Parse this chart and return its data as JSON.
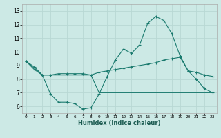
{
  "title": "",
  "xlabel": "Humidex (Indice chaleur)",
  "background_color": "#cce9e5",
  "grid_color": "#b8d8d4",
  "line_color": "#1a7a6e",
  "x_ticks": [
    0,
    1,
    2,
    3,
    4,
    5,
    6,
    7,
    8,
    9,
    10,
    11,
    12,
    13,
    14,
    15,
    16,
    17,
    18,
    19,
    20,
    21,
    22,
    23
  ],
  "y_ticks": [
    6,
    7,
    8,
    9,
    10,
    11,
    12,
    13
  ],
  "ylim": [
    5.5,
    13.5
  ],
  "xlim": [
    -0.5,
    23.5
  ],
  "series1_x": [
    0,
    1,
    2,
    3,
    4,
    5,
    6,
    7,
    8,
    9,
    10,
    11,
    12,
    13,
    14,
    15,
    16,
    17,
    18,
    19,
    20,
    21,
    22,
    23
  ],
  "series1_y": [
    9.3,
    8.9,
    8.3,
    6.9,
    6.3,
    6.3,
    6.2,
    5.8,
    5.9,
    6.9,
    8.2,
    9.4,
    10.2,
    9.9,
    10.5,
    12.1,
    12.6,
    12.3,
    11.3,
    9.7,
    8.6,
    8.0,
    7.3,
    7.0
  ],
  "series2_x": [
    0,
    1,
    2,
    3,
    4,
    5,
    6,
    7,
    8,
    9,
    10,
    11,
    12,
    13,
    14,
    15,
    16,
    17,
    18,
    19,
    20,
    21,
    22,
    23
  ],
  "series2_y": [
    9.3,
    8.7,
    8.3,
    8.3,
    8.4,
    8.4,
    8.4,
    8.4,
    8.3,
    8.5,
    8.6,
    8.7,
    8.8,
    8.9,
    9.0,
    9.1,
    9.2,
    9.4,
    9.5,
    9.6,
    8.6,
    8.5,
    8.3,
    8.2
  ],
  "series3_x": [
    0,
    1,
    2,
    3,
    4,
    5,
    6,
    7,
    8,
    9,
    10,
    11,
    12,
    13,
    14,
    15,
    16,
    17,
    18,
    19,
    20,
    21,
    22,
    23
  ],
  "series3_y": [
    9.3,
    8.8,
    8.3,
    8.3,
    8.3,
    8.3,
    8.3,
    8.3,
    8.3,
    7.0,
    7.0,
    7.0,
    7.0,
    7.0,
    7.0,
    7.0,
    7.0,
    7.0,
    7.0,
    7.0,
    7.0,
    7.0,
    7.0,
    7.0
  ]
}
